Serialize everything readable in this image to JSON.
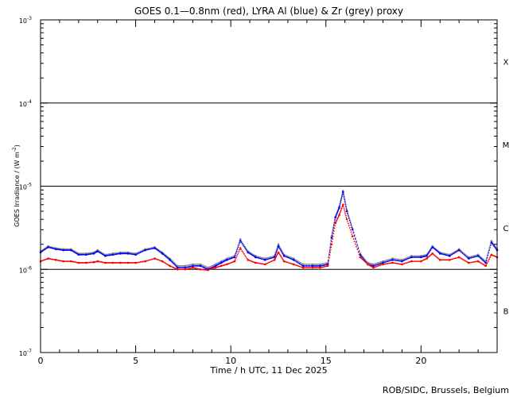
{
  "chart_data": {
    "type": "scatter",
    "title": "GOES 0.1—0.8nm (red), LYRA Al (blue) & Zr (grey) proxy",
    "xlabel": "Time / h UTC, 11 Dec 2025",
    "ylabel": "GOES Irradiance / (W m",
    "ylabel_sup": "-2",
    "ylabel_close": ")",
    "xlim": [
      0,
      24
    ],
    "ylim": [
      1e-07,
      0.001
    ],
    "yscale": "log",
    "xticks": [
      0,
      5,
      10,
      15,
      20
    ],
    "xtick_labels": [
      "0",
      "5",
      "10",
      "15",
      "20"
    ],
    "yticks": [
      {
        "base": "10",
        "exp": "-3",
        "value": 0.001
      },
      {
        "base": "10",
        "exp": "-4",
        "value": 0.0001
      },
      {
        "base": "10",
        "exp": "-5",
        "value": 1e-05
      },
      {
        "base": "10",
        "exp": "-6",
        "value": 1e-06
      },
      {
        "base": "10",
        "exp": "-7",
        "value": 1e-07
      }
    ],
    "flare_class_labels": [
      {
        "label": "X",
        "value": 0.000316
      },
      {
        "label": "M",
        "value": 3.16e-05
      },
      {
        "label": "C",
        "value": 3.16e-06
      },
      {
        "label": "B",
        "value": 3.16e-07
      }
    ],
    "threshold_lines": [
      0.0001,
      1e-05,
      1e-06
    ],
    "credit": "ROB/SIDC, Brussels, Belgium",
    "series": [
      {
        "color": "#ff0000",
        "x": [
          0.0,
          0.4,
          0.8,
          1.2,
          1.6,
          2.0,
          2.4,
          2.8,
          3.0,
          3.4,
          3.8,
          4.2,
          4.6,
          5.0,
          5.5,
          6.0,
          6.4,
          6.8,
          7.2,
          7.6,
          8.0,
          8.4,
          8.8,
          9.2,
          9.5,
          9.8,
          10.2,
          10.5,
          10.9,
          11.3,
          11.8,
          12.3,
          12.5,
          12.8,
          13.3,
          13.8,
          14.3,
          14.7,
          15.1,
          15.3,
          15.5,
          15.7,
          15.9,
          16.1,
          16.4,
          16.8,
          17.2,
          17.5,
          18.0,
          18.5,
          19.0,
          19.5,
          20.0,
          20.3,
          20.6,
          21.0,
          21.5,
          22.0,
          22.5,
          23.0,
          23.4,
          23.7,
          24.0
        ],
        "y": [
          1.25e-06,
          1.35e-06,
          1.3e-06,
          1.25e-06,
          1.25e-06,
          1.2e-06,
          1.2e-06,
          1.22e-06,
          1.25e-06,
          1.2e-06,
          1.2e-06,
          1.2e-06,
          1.2e-06,
          1.2e-06,
          1.25e-06,
          1.35e-06,
          1.25e-06,
          1.1e-06,
          1e-06,
          1e-06,
          1.05e-06,
          1e-06,
          9.8e-07,
          1.05e-06,
          1.1e-06,
          1.15e-06,
          1.25e-06,
          1.8e-06,
          1.3e-06,
          1.2e-06,
          1.15e-06,
          1.3e-06,
          1.6e-06,
          1.25e-06,
          1.15e-06,
          1.05e-06,
          1.05e-06,
          1.05e-06,
          1.1e-06,
          2e-06,
          3.6e-06,
          4.5e-06,
          6e-06,
          4e-06,
          2.5e-06,
          1.4e-06,
          1.15e-06,
          1.05e-06,
          1.15e-06,
          1.2e-06,
          1.15e-06,
          1.25e-06,
          1.25e-06,
          1.35e-06,
          1.55e-06,
          1.3e-06,
          1.3e-06,
          1.4e-06,
          1.2e-06,
          1.25e-06,
          1.1e-06,
          1.5e-06,
          1.4e-06
        ]
      },
      {
        "color": "#0000ff",
        "x": [
          0.0,
          0.4,
          0.8,
          1.2,
          1.6,
          2.0,
          2.4,
          2.8,
          3.0,
          3.4,
          3.8,
          4.2,
          4.6,
          5.0,
          5.5,
          6.0,
          6.4,
          6.8,
          7.2,
          7.6,
          8.0,
          8.4,
          8.8,
          9.2,
          9.5,
          9.8,
          10.2,
          10.5,
          10.9,
          11.3,
          11.8,
          12.3,
          12.5,
          12.8,
          13.3,
          13.8,
          14.3,
          14.7,
          15.1,
          15.3,
          15.5,
          15.7,
          15.9,
          16.1,
          16.4,
          16.8,
          17.2,
          17.5,
          18.0,
          18.5,
          19.0,
          19.5,
          20.0,
          20.3,
          20.6,
          21.0,
          21.5,
          22.0,
          22.5,
          23.0,
          23.4,
          23.7,
          24.0
        ],
        "y": [
          1.6e-06,
          1.85e-06,
          1.75e-06,
          1.7e-06,
          1.7e-06,
          1.5e-06,
          1.5e-06,
          1.55e-06,
          1.65e-06,
          1.45e-06,
          1.5e-06,
          1.55e-06,
          1.55e-06,
          1.5e-06,
          1.7e-06,
          1.8e-06,
          1.55e-06,
          1.3e-06,
          1.05e-06,
          1.05e-06,
          1.1e-06,
          1.1e-06,
          1e-06,
          1.1e-06,
          1.2e-06,
          1.3e-06,
          1.4e-06,
          2.2e-06,
          1.6e-06,
          1.4e-06,
          1.3e-06,
          1.4e-06,
          1.9e-06,
          1.45e-06,
          1.3e-06,
          1.1e-06,
          1.1e-06,
          1.1e-06,
          1.15e-06,
          2.4e-06,
          4.2e-06,
          5.5e-06,
          8.5e-06,
          5e-06,
          3e-06,
          1.5e-06,
          1.15e-06,
          1.1e-06,
          1.2e-06,
          1.3e-06,
          1.25e-06,
          1.4e-06,
          1.4e-06,
          1.45e-06,
          1.85e-06,
          1.55e-06,
          1.45e-06,
          1.7e-06,
          1.35e-06,
          1.45e-06,
          1.2e-06,
          2.1e-06,
          1.7e-06
        ]
      },
      {
        "color": "#888888",
        "x": [
          0.0,
          0.4,
          0.8,
          1.2,
          1.6,
          2.0,
          2.4,
          2.8,
          3.0,
          3.4,
          3.8,
          4.2,
          4.6,
          5.0,
          5.5,
          6.0,
          6.4,
          6.8,
          7.2,
          7.6,
          8.0,
          8.4,
          8.8,
          9.2,
          9.5,
          9.8,
          10.2,
          10.5,
          10.9,
          11.3,
          11.8,
          12.3,
          12.5,
          12.8,
          13.3,
          13.8,
          14.3,
          14.7,
          15.1,
          15.3,
          15.5,
          15.7,
          15.9,
          16.1,
          16.4,
          16.8,
          17.2,
          17.5,
          18.0,
          18.5,
          19.0,
          19.5,
          20.0,
          20.3,
          20.6,
          21.0,
          21.5,
          22.0,
          22.5,
          23.0,
          23.4,
          23.7,
          24.0
        ],
        "y": [
          1.65e-06,
          1.9e-06,
          1.8e-06,
          1.75e-06,
          1.75e-06,
          1.55e-06,
          1.55e-06,
          1.6e-06,
          1.7e-06,
          1.5e-06,
          1.55e-06,
          1.6e-06,
          1.6e-06,
          1.55e-06,
          1.75e-06,
          1.85e-06,
          1.6e-06,
          1.35e-06,
          1.1e-06,
          1.1e-06,
          1.15e-06,
          1.15e-06,
          1.05e-06,
          1.15e-06,
          1.25e-06,
          1.35e-06,
          1.45e-06,
          2.3e-06,
          1.65e-06,
          1.45e-06,
          1.35e-06,
          1.45e-06,
          2e-06,
          1.5e-06,
          1.35e-06,
          1.15e-06,
          1.15e-06,
          1.15e-06,
          1.2e-06,
          2.5e-06,
          4.3e-06,
          5.7e-06,
          8.8e-06,
          5.2e-06,
          3.1e-06,
          1.55e-06,
          1.2e-06,
          1.15e-06,
          1.25e-06,
          1.35e-06,
          1.3e-06,
          1.45e-06,
          1.45e-06,
          1.5e-06,
          1.9e-06,
          1.6e-06,
          1.5e-06,
          1.75e-06,
          1.4e-06,
          1.5e-06,
          1.25e-06,
          2.2e-06,
          1.75e-06
        ]
      }
    ]
  }
}
